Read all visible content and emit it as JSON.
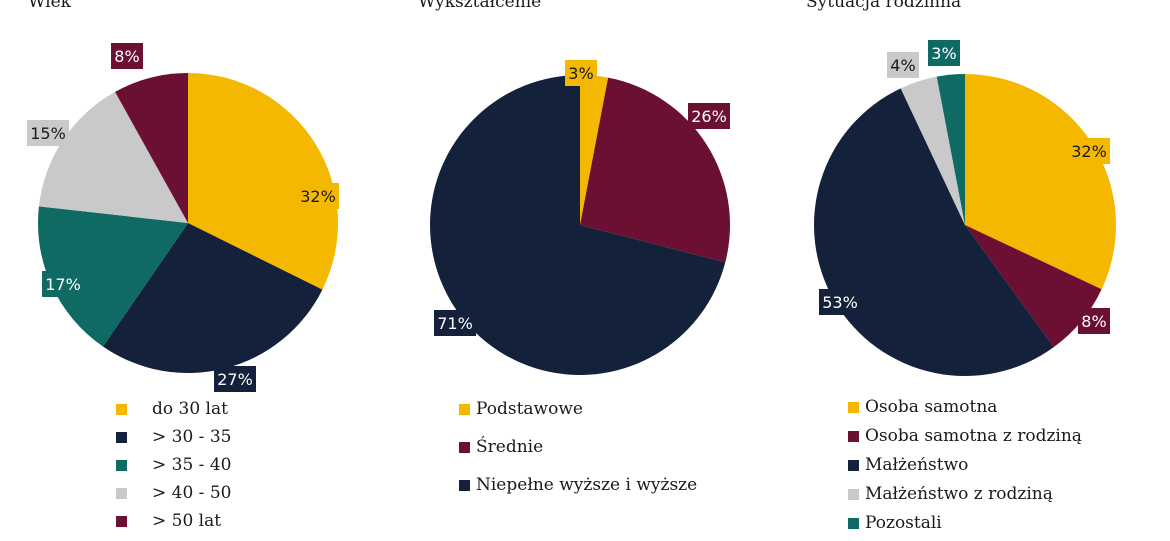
{
  "chart_data": [
    {
      "type": "pie",
      "title": "Wiek",
      "categories": [
        "do 30 lat",
        "> 30 - 35",
        "> 35 - 40",
        "> 40 - 50",
        "> 50 lat"
      ],
      "values": [
        32,
        27,
        17,
        15,
        8
      ],
      "labels": [
        "32%",
        "27%",
        "17%",
        "15%",
        "8%"
      ],
      "colors": [
        "#f5b800",
        "#14213a",
        "#0e6a62",
        "#c9c9c9",
        "#6b0f33"
      ],
      "legend_position": "bottom"
    },
    {
      "type": "pie",
      "title": "Wykształcenie",
      "categories": [
        "Podstawowe",
        "Średnie",
        "Niepełne wyższe i wyższe"
      ],
      "values": [
        3,
        26,
        71
      ],
      "labels": [
        "3%",
        "26%",
        "71%"
      ],
      "colors": [
        "#f5b800",
        "#6b0f33",
        "#14213a"
      ],
      "legend_position": "bottom"
    },
    {
      "type": "pie",
      "title": "Sytuacja rodzinna",
      "categories": [
        "Osoba samotna",
        "Osoba samotna z rodziną",
        "Małżeństwo",
        "Małżeństwo z rodziną",
        "Pozostali"
      ],
      "values": [
        32,
        8,
        53,
        4,
        3
      ],
      "labels": [
        "32%",
        "8%",
        "53%",
        "4%",
        "3%"
      ],
      "colors": [
        "#f5b800",
        "#6b0f33",
        "#14213a",
        "#c9c9c9",
        "#0e6a62"
      ],
      "legend_position": "bottom"
    }
  ]
}
